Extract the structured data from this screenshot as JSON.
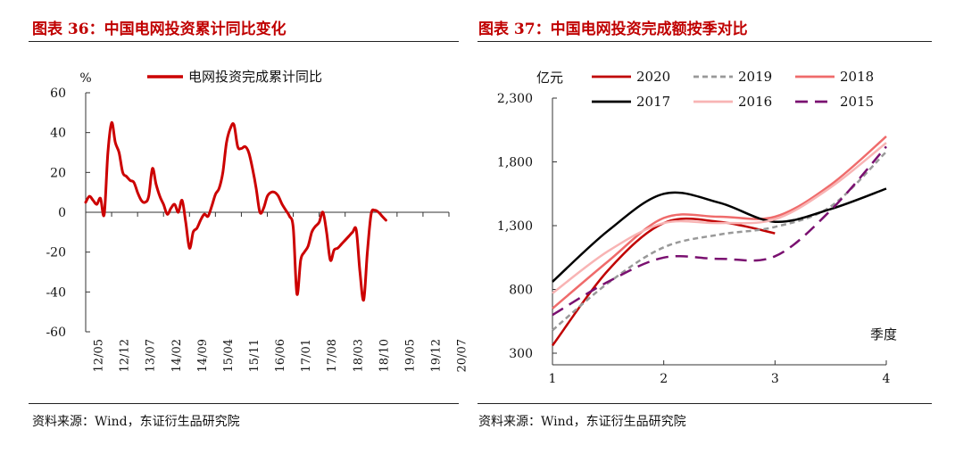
{
  "left": {
    "title": "图表 36：中国电网投资累计同比变化",
    "source": "资料来源：Wind，东证衍生品研究院",
    "chart_data": {
      "type": "line",
      "unit_label": "%",
      "ylim": [
        -60,
        60
      ],
      "y_ticks": [
        60,
        40,
        20,
        0,
        -20,
        -40,
        -60
      ],
      "x_tick_labels": [
        "12/05",
        "12/12",
        "13/07",
        "14/02",
        "14/09",
        "15/04",
        "15/11",
        "16/06",
        "17/01",
        "17/08",
        "18/03",
        "18/10",
        "19/05",
        "19/12",
        "20/07"
      ],
      "x_start_index": -1,
      "x_end_index": 97,
      "series": [
        {
          "name": "电网投资完成累计同比",
          "color": "#cc0000",
          "points": [
            [
              -1,
              5
            ],
            [
              0,
              8
            ],
            [
              1,
              6
            ],
            [
              2,
              4
            ],
            [
              3,
              7
            ],
            [
              4,
              -1
            ],
            [
              5,
              30
            ],
            [
              6,
              45
            ],
            [
              7,
              35
            ],
            [
              8,
              30
            ],
            [
              9,
              20
            ],
            [
              10,
              18
            ],
            [
              11,
              16
            ],
            [
              12,
              15
            ],
            [
              13,
              10
            ],
            [
              14,
              6
            ],
            [
              15,
              5
            ],
            [
              16,
              8
            ],
            [
              17,
              22
            ],
            [
              18,
              14
            ],
            [
              19,
              8
            ],
            [
              20,
              4
            ],
            [
              21,
              -1
            ],
            [
              22,
              2
            ],
            [
              23,
              4
            ],
            [
              24,
              0
            ],
            [
              25,
              6
            ],
            [
              26,
              -5
            ],
            [
              27,
              -18
            ],
            [
              28,
              -10
            ],
            [
              29,
              -8
            ],
            [
              30,
              -4
            ],
            [
              31,
              -1
            ],
            [
              32,
              -2
            ],
            [
              33,
              3
            ],
            [
              34,
              9
            ],
            [
              35,
              12
            ],
            [
              36,
              20
            ],
            [
              37,
              35
            ],
            [
              38,
              42
            ],
            [
              39,
              44
            ],
            [
              40,
              33
            ],
            [
              41,
              32
            ],
            [
              42,
              33
            ],
            [
              43,
              30
            ],
            [
              44,
              22
            ],
            [
              45,
              12
            ],
            [
              46,
              0
            ],
            [
              47,
              2
            ],
            [
              48,
              8
            ],
            [
              49,
              10
            ],
            [
              50,
              10
            ],
            [
              51,
              8
            ],
            [
              52,
              4
            ],
            [
              53,
              1
            ],
            [
              54,
              -2
            ],
            [
              55,
              -8
            ],
            [
              56,
              -41
            ],
            [
              57,
              -24
            ],
            [
              58,
              -20
            ],
            [
              59,
              -17
            ],
            [
              60,
              -10
            ],
            [
              61,
              -7
            ],
            [
              62,
              -5
            ],
            [
              63,
              0
            ],
            [
              64,
              -10
            ],
            [
              65,
              -24
            ],
            [
              66,
              -19
            ],
            [
              67,
              -18
            ],
            [
              68,
              -16
            ],
            [
              69,
              -14
            ],
            [
              70,
              -12
            ],
            [
              71,
              -10
            ],
            [
              72,
              -9
            ],
            [
              73,
              -30
            ],
            [
              74,
              -44
            ],
            [
              75,
              -20
            ],
            [
              76,
              -1
            ],
            [
              77,
              1
            ],
            [
              78,
              0
            ],
            [
              79,
              -2
            ],
            [
              80,
              -4
            ]
          ]
        }
      ],
      "grid": false,
      "legend": "top"
    }
  },
  "right": {
    "title": "图表 37：中国电网投资完成额按季对比",
    "source": "资料来源：Wind，东证衍生品研究院",
    "chart_data": {
      "type": "line",
      "ylabel": "亿元",
      "xlabel": "季度",
      "x": [
        1,
        2,
        3,
        4
      ],
      "xlim": [
        1,
        4
      ],
      "ylim": [
        300,
        2300
      ],
      "y_ticks": [
        2300,
        1800,
        1300,
        800,
        300
      ],
      "series": [
        {
          "name": "2020",
          "color": "#c00000",
          "dash": "",
          "points": [
            [
              1,
              360
            ],
            [
              1.5,
              950
            ],
            [
              2,
              1320
            ],
            [
              2.5,
              1330
            ],
            [
              3,
              1240
            ]
          ]
        },
        {
          "name": "2019",
          "color": "#999999",
          "dash": "6,4",
          "points": [
            [
              1,
              480
            ],
            [
              1.5,
              850
            ],
            [
              2,
              1130
            ],
            [
              2.5,
              1230
            ],
            [
              3,
              1290
            ],
            [
              3.5,
              1450
            ],
            [
              4,
              1880
            ]
          ]
        },
        {
          "name": "2018",
          "color": "#ef6b6b",
          "dash": "",
          "points": [
            [
              1,
              650
            ],
            [
              1.5,
              1020
            ],
            [
              2,
              1360
            ],
            [
              2.5,
              1370
            ],
            [
              3,
              1370
            ],
            [
              3.5,
              1620
            ],
            [
              4,
              2000
            ]
          ]
        },
        {
          "name": "2017",
          "color": "#000000",
          "dash": "",
          "points": [
            [
              1,
              860
            ],
            [
              1.5,
              1260
            ],
            [
              2,
              1550
            ],
            [
              2.5,
              1480
            ],
            [
              3,
              1330
            ],
            [
              3.5,
              1430
            ],
            [
              4,
              1590
            ]
          ]
        },
        {
          "name": "2016",
          "color": "#f8b4b4",
          "dash": "",
          "points": [
            [
              1,
              770
            ],
            [
              1.5,
              1100
            ],
            [
              2,
              1320
            ],
            [
              2.5,
              1320
            ],
            [
              3,
              1350
            ],
            [
              3.5,
              1600
            ],
            [
              4,
              1950
            ]
          ]
        },
        {
          "name": "2015",
          "color": "#7a1070",
          "dash": "14,8",
          "points": [
            [
              1,
              600
            ],
            [
              1.5,
              860
            ],
            [
              2,
              1050
            ],
            [
              2.5,
              1040
            ],
            [
              3,
              1060
            ],
            [
              3.5,
              1420
            ],
            [
              4,
              1920
            ]
          ]
        }
      ],
      "grid": false,
      "legend": "top"
    }
  }
}
